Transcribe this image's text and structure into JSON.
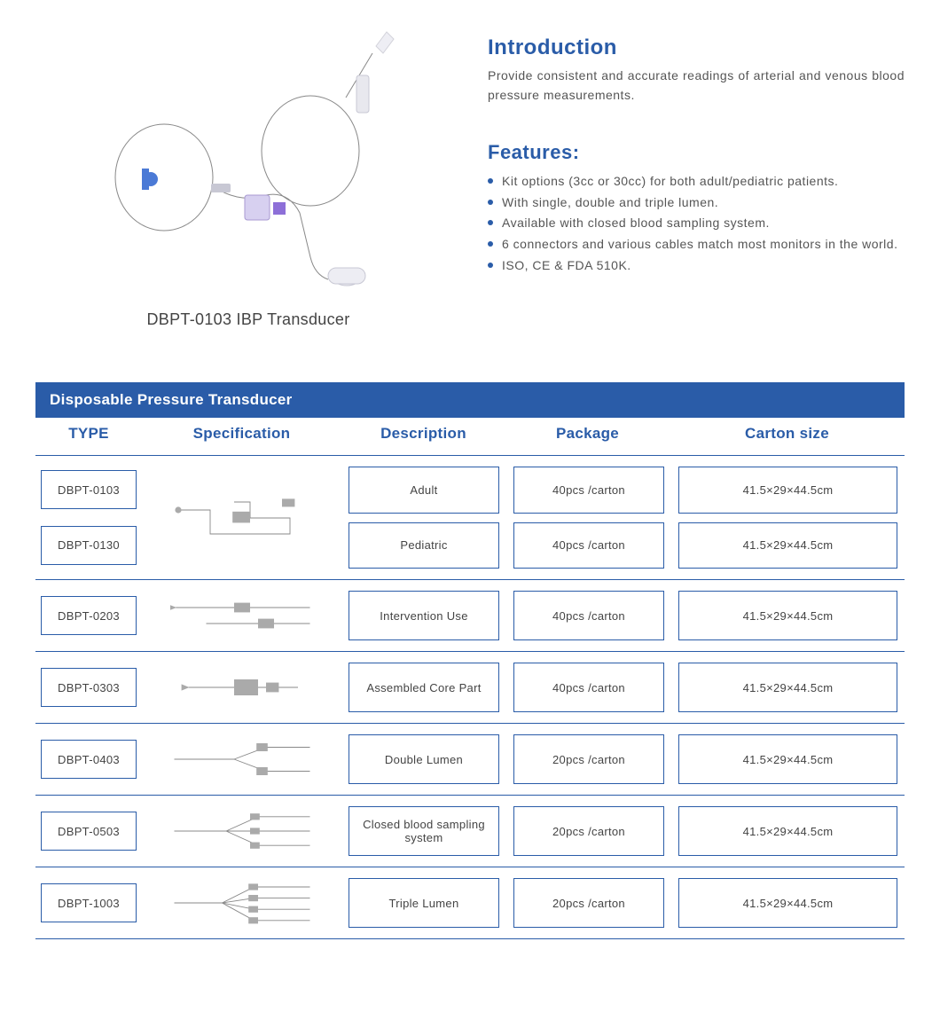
{
  "colors": {
    "primary": "#2a5ca8",
    "text": "#444444",
    "background": "#ffffff"
  },
  "product": {
    "caption": "DBPT-0103 IBP Transducer"
  },
  "intro": {
    "heading": "Introduction",
    "text": "Provide consistent and accurate readings of arterial and venous blood pressure measurements."
  },
  "features": {
    "heading": "Features:",
    "items": [
      "Kit options (3cc or 30cc) for both adult/pediatric patients.",
      "With single, double and triple lumen.",
      "Available with closed blood sampling system.",
      "6 connectors and various cables match most monitors in the world.",
      "ISO, CE & FDA 510K."
    ]
  },
  "table": {
    "title": "Disposable Pressure Transducer",
    "columns": {
      "type": "TYPE",
      "spec": "Specification",
      "desc": "Description",
      "pack": "Package",
      "cart": "Carton  size"
    },
    "groups": [
      {
        "spec_diagram": "kit-loop",
        "rows": [
          {
            "type": "DBPT-0103",
            "desc": "Adult",
            "pack": "40pcs /carton",
            "cart": "41.5×29×44.5cm"
          },
          {
            "type": "DBPT-0130",
            "desc": "Pediatric",
            "pack": "40pcs /carton",
            "cart": "41.5×29×44.5cm"
          }
        ]
      },
      {
        "spec_diagram": "short-line",
        "rows": [
          {
            "type": "DBPT-0203",
            "desc": "Intervention Use",
            "pack": "40pcs /carton",
            "cart": "41.5×29×44.5cm"
          }
        ]
      },
      {
        "spec_diagram": "core-part",
        "rows": [
          {
            "type": "DBPT-0303",
            "desc": "Assembled Core Part",
            "pack": "40pcs /carton",
            "cart": "41.5×29×44.5cm"
          }
        ]
      },
      {
        "spec_diagram": "double-lumen",
        "rows": [
          {
            "type": "DBPT-0403",
            "desc": "Double Lumen",
            "pack": "20pcs /carton",
            "cart": "41.5×29×44.5cm"
          }
        ]
      },
      {
        "spec_diagram": "closed-sampling",
        "rows": [
          {
            "type": "DBPT-0503",
            "desc": "Closed blood sampling system",
            "pack": "20pcs /carton",
            "cart": "41.5×29×44.5cm"
          }
        ]
      },
      {
        "spec_diagram": "triple-lumen",
        "rows": [
          {
            "type": "DBPT-1003",
            "desc": "Triple Lumen",
            "pack": "20pcs /carton",
            "cart": "41.5×29×44.5cm"
          }
        ]
      }
    ]
  }
}
